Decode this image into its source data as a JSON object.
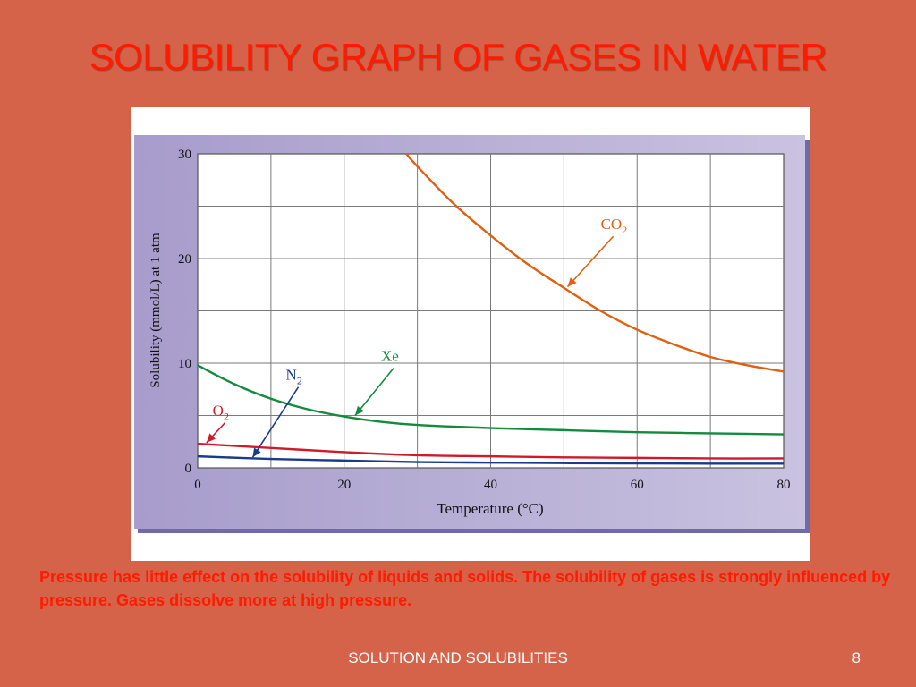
{
  "slide": {
    "title": "SOLUBILITY GRAPH OF GASES IN WATER",
    "caption": "Pressure has little effect on the solubility of liquids and solids. The solubility of gases is strongly influenced by pressure. Gases dissolve more at high pressure.",
    "footer": "SOLUTION AND SOLUBILITIES",
    "page_number": "8",
    "colors": {
      "background": "#d4634a",
      "title": "#ff1a00",
      "panel": "#b3aad0",
      "grid": "#7a7a7a"
    }
  },
  "chart_data": {
    "type": "line",
    "xlabel": "Temperature (°C)",
    "ylabel": "Solubility (mmol/L) at 1 atm",
    "xlim": [
      0,
      80
    ],
    "ylim": [
      0,
      30
    ],
    "xticks": [
      "0",
      "20",
      "40",
      "60",
      "80"
    ],
    "yticks": [
      "0",
      "10",
      "20",
      "30"
    ],
    "grid": true,
    "series": [
      {
        "name": "CO",
        "subscript": "2",
        "color": "#e06010",
        "x": [
          28.5,
          30,
          35,
          40,
          45,
          50,
          55,
          60,
          65,
          70,
          75,
          80
        ],
        "y": [
          30,
          28.8,
          25.2,
          22.2,
          19.5,
          17.2,
          15.0,
          13.2,
          11.8,
          10.6,
          9.8,
          9.2
        ]
      },
      {
        "name": "Xe",
        "subscript": "",
        "color": "#138a3e",
        "x": [
          0,
          5,
          10,
          15,
          20,
          25,
          30,
          40,
          50,
          60,
          70,
          80
        ],
        "y": [
          9.8,
          8.0,
          6.6,
          5.6,
          4.9,
          4.4,
          4.1,
          3.8,
          3.6,
          3.4,
          3.3,
          3.2
        ]
      },
      {
        "name": "O",
        "subscript": "2",
        "color": "#d01a2a",
        "x": [
          0,
          10,
          20,
          30,
          40,
          50,
          60,
          70,
          80
        ],
        "y": [
          2.3,
          1.9,
          1.5,
          1.2,
          1.1,
          1.0,
          0.95,
          0.9,
          0.9
        ]
      },
      {
        "name": "N",
        "subscript": "2",
        "color": "#1a3a8a",
        "x": [
          0,
          10,
          20,
          30,
          40,
          50,
          60,
          70,
          80
        ],
        "y": [
          1.1,
          0.85,
          0.7,
          0.55,
          0.5,
          0.45,
          0.42,
          0.4,
          0.4
        ]
      }
    ],
    "annotations": [
      {
        "series": "CO2",
        "label_x": 56.5,
        "label_y": 22.8,
        "arrow_x": 50.5,
        "arrow_y": 17.3
      },
      {
        "series": "Xe",
        "label_x": 26.5,
        "label_y": 10.2,
        "arrow_x": 21.5,
        "arrow_y": 5.0
      },
      {
        "series": "N2",
        "label_x": 13.5,
        "label_y": 8.4,
        "arrow_x": 7.5,
        "arrow_y": 1.0
      },
      {
        "series": "O2",
        "label_x": 3.5,
        "label_y": 5.0,
        "arrow_x": 1.2,
        "arrow_y": 2.4
      }
    ]
  }
}
